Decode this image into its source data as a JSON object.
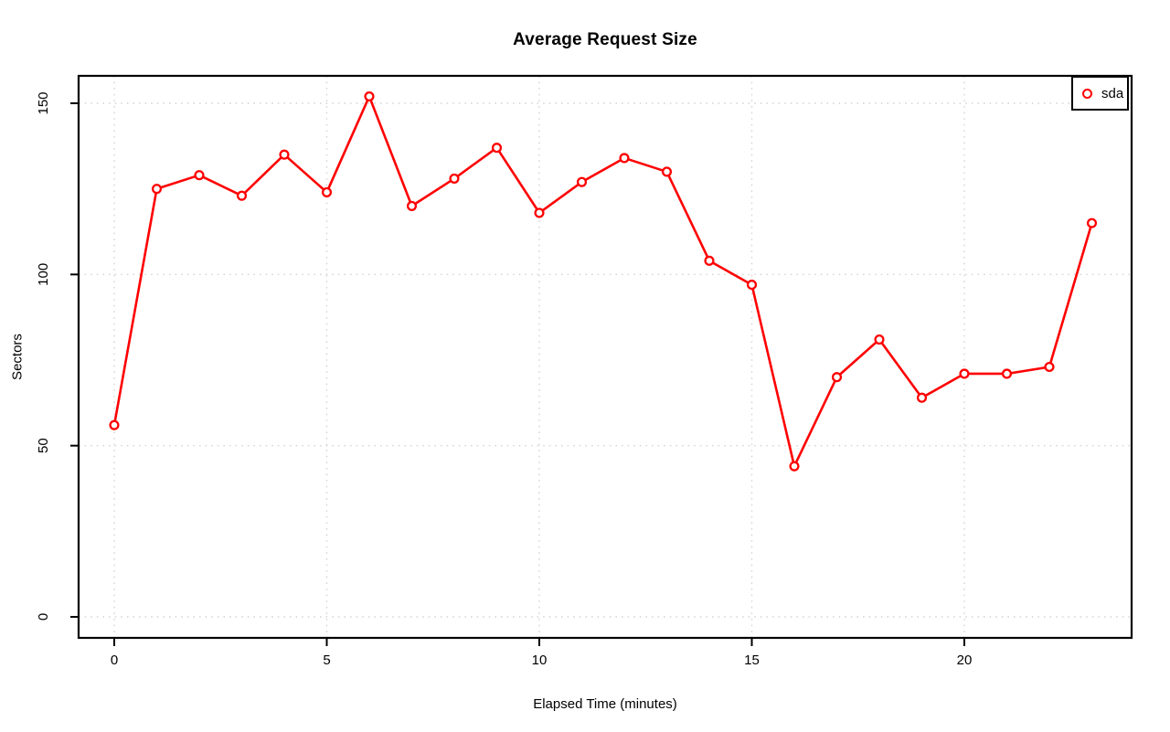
{
  "chart_data": {
    "type": "line",
    "title": "Average Request Size",
    "xlabel": "Elapsed Time (minutes)",
    "ylabel": "Sectors",
    "x": [
      0,
      1,
      2,
      3,
      4,
      5,
      6,
      7,
      8,
      9,
      10,
      11,
      12,
      13,
      14,
      15,
      16,
      17,
      18,
      19,
      20,
      21,
      22,
      23
    ],
    "series": [
      {
        "name": "sda",
        "color": "#ff0000",
        "values": [
          56,
          125,
          129,
          123,
          135,
          124,
          152,
          120,
          128,
          137,
          118,
          127,
          134,
          130,
          104,
          97,
          44,
          70,
          81,
          64,
          71,
          71,
          73,
          115
        ]
      }
    ],
    "x_ticks": [
      0,
      5,
      10,
      15,
      20
    ],
    "y_ticks": [
      0,
      50,
      100,
      150
    ],
    "xlim": [
      -1,
      24
    ],
    "ylim": [
      -6,
      158
    ],
    "grid": "dotted",
    "grid_color": "#d4d4d4",
    "legend_position": "topright",
    "legend_entries": [
      "sda"
    ],
    "marker": "open-circle",
    "background": "#ffffff",
    "axis_color": "#000000"
  }
}
